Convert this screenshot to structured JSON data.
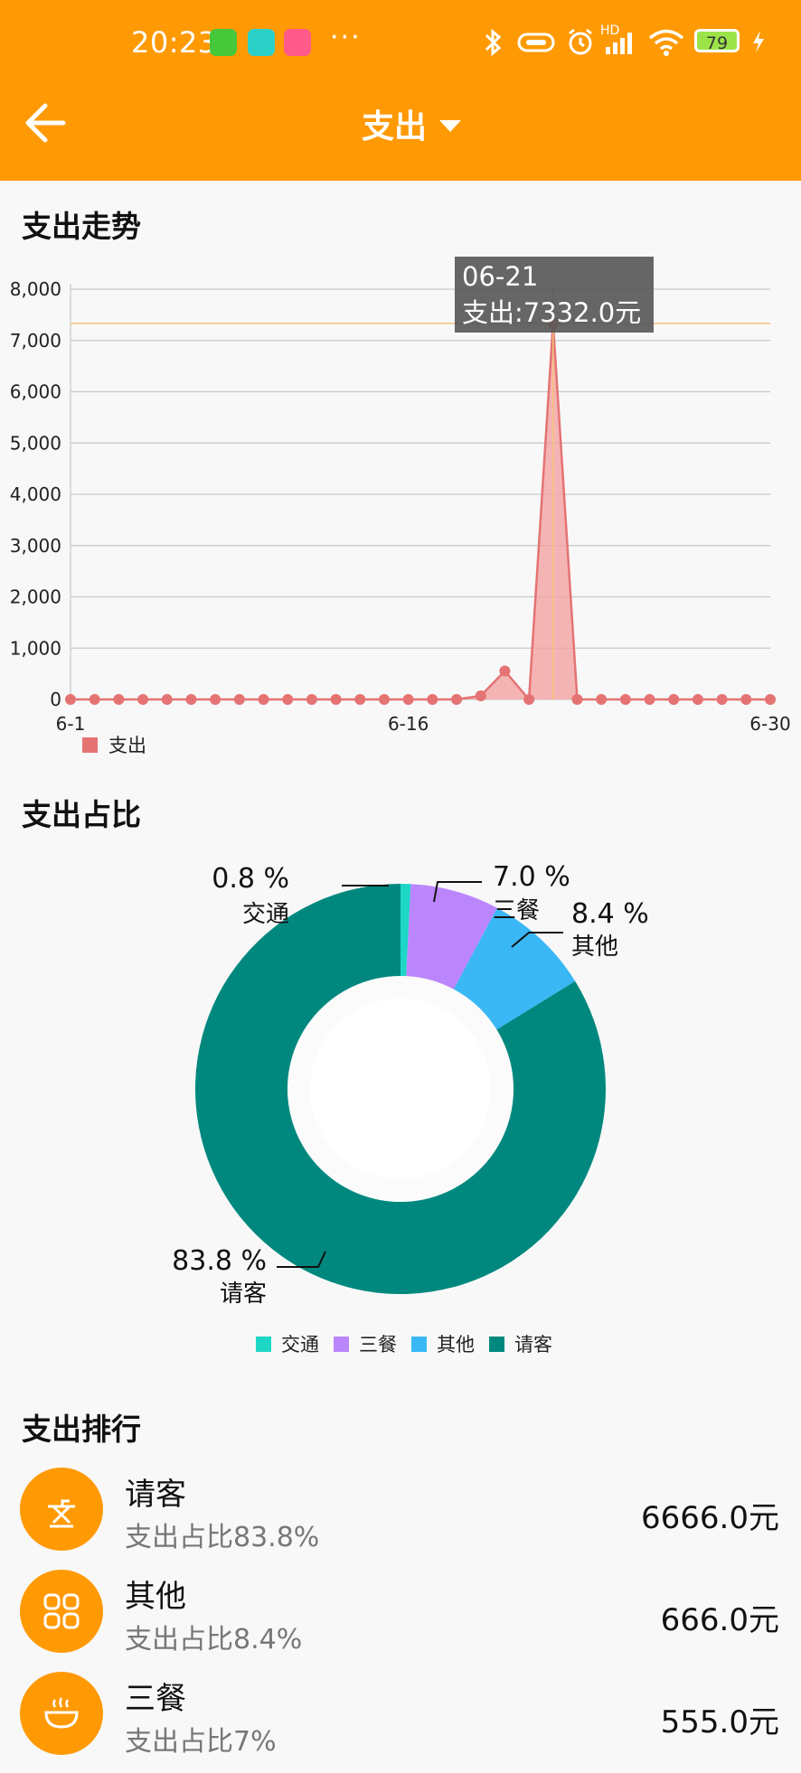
{
  "status_bar": {
    "time": "20:23",
    "more": "···",
    "network_label": "HD",
    "battery": "79"
  },
  "toolbar": {
    "title": "支出",
    "back_icon": "arrow-left-icon",
    "dropdown_icon": "caret-down-icon"
  },
  "trend": {
    "title": "支出走势",
    "legend": "支出",
    "tooltip_date": "06-21",
    "tooltip_value": "支出:7332.0元"
  },
  "share": {
    "title": "支出占比"
  },
  "ranking": {
    "title": "支出排行",
    "items": [
      {
        "name": "请客",
        "pct": "支出占比83.8%",
        "amount": "6666.0元",
        "icon": "ironing-icon"
      },
      {
        "name": "其他",
        "pct": "支出占比8.4%",
        "amount": "666.0元",
        "icon": "grid-icon"
      },
      {
        "name": "三餐",
        "pct": "支出占比7%",
        "amount": "555.0元",
        "icon": "bowl-icon"
      }
    ]
  },
  "colors": {
    "accent": "#ff9a05",
    "line": "#e57373",
    "area": "#f4a3a3",
    "teal": "#00887f",
    "cyan": "#1ed6c6",
    "purple": "#bb86fc",
    "blue": "#3ab7f5"
  },
  "chart_data": [
    {
      "type": "area",
      "title": "支出走势",
      "x_ticks": [
        "6-1",
        "6-16",
        "6-30"
      ],
      "x": [
        1,
        2,
        3,
        4,
        5,
        6,
        7,
        8,
        9,
        10,
        11,
        12,
        13,
        14,
        15,
        16,
        17,
        18,
        19,
        20,
        21,
        22,
        23,
        24,
        25,
        26,
        27,
        28,
        29,
        30
      ],
      "series": [
        {
          "name": "支出",
          "values": [
            0,
            0,
            0,
            0,
            0,
            0,
            0,
            0,
            0,
            0,
            0,
            0,
            0,
            0,
            0,
            0,
            0,
            70,
            555,
            0,
            7332,
            0,
            0,
            0,
            0,
            0,
            0,
            0,
            0,
            0
          ]
        }
      ],
      "y_ticks": [
        "0",
        "1,000",
        "2,000",
        "3,000",
        "4,000",
        "5,000",
        "6,000",
        "7,000",
        "8,000"
      ],
      "ylim": [
        0,
        8000
      ],
      "grid": true,
      "legend": "bottom-left",
      "highlight": {
        "x": 21,
        "value": 7332
      }
    },
    {
      "type": "pie",
      "title": "支出占比",
      "donut": true,
      "slices": [
        {
          "name": "交通",
          "value": 0.8,
          "label": "0.8 %"
        },
        {
          "name": "三餐",
          "value": 7.0,
          "label": "7.0 %"
        },
        {
          "name": "其他",
          "value": 8.4,
          "label": "8.4 %"
        },
        {
          "name": "请客",
          "value": 83.8,
          "label": "83.8 %"
        }
      ],
      "legend": "bottom-center"
    }
  ]
}
